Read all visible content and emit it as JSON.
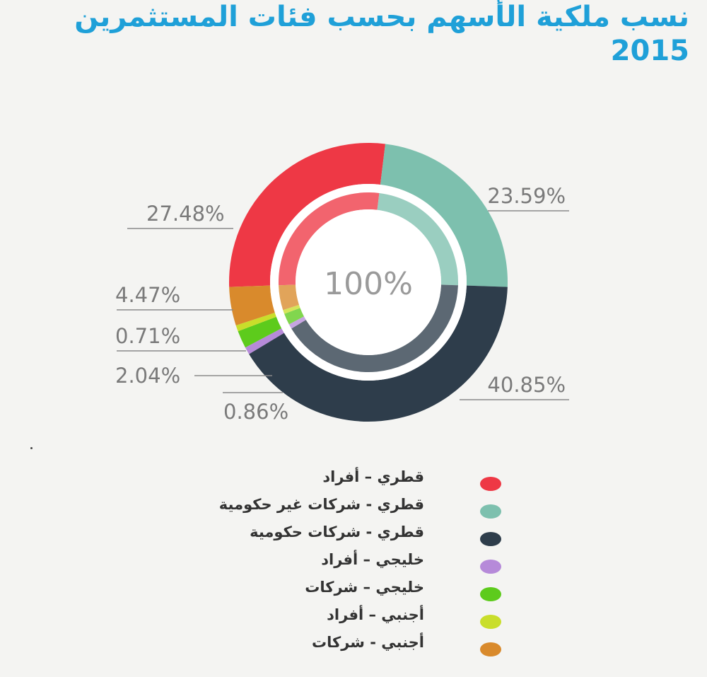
{
  "title": "نسب ملكية الأسهم بحسب فئات المستثمرين 2015",
  "chart_data": {
    "type": "pie",
    "variant": "donut",
    "title": "نسب ملكية الأسهم بحسب فئات المستثمرين 2015",
    "center_label": "100%",
    "legend_position": "bottom",
    "slices": [
      {
        "name": "قطري – أفراد",
        "value": 27.48,
        "label": "27.48%",
        "color": "#ee3845"
      },
      {
        "name": "قطري - شركات غير حكومية",
        "value": 23.59,
        "label": "23.59%",
        "color": "#7dc0ae"
      },
      {
        "name": "قطري - شركات حكومية",
        "value": 40.85,
        "label": "40.85%",
        "color": "#2e3d4b"
      },
      {
        "name": "خليجي – أفراد",
        "value": 0.86,
        "label": "0.86%",
        "color": "#b68ad9"
      },
      {
        "name": "خليجي – شركات",
        "value": 2.04,
        "label": "2.04%",
        "color": "#5dcb1c"
      },
      {
        "name": "أجنبي – أفراد",
        "value": 0.71,
        "label": "0.71%",
        "color": "#c9de2b"
      },
      {
        "name": "أجنبي - شركات",
        "value": 4.47,
        "label": "4.47%",
        "color": "#d98a2c"
      }
    ]
  }
}
